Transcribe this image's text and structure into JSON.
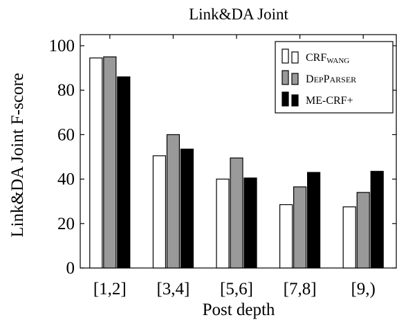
{
  "chart_data": {
    "type": "bar",
    "title": "Link&DA Joint",
    "xlabel": "Post depth",
    "ylabel": "Link&DA Joint F-score",
    "categories": [
      "[1,2]",
      "[3,4]",
      "[5,6]",
      "[7,8]",
      "[9,)"
    ],
    "ylim": [
      0,
      105
    ],
    "yticks": [
      0,
      20,
      40,
      60,
      80,
      100
    ],
    "grid": false,
    "legend_position": "top-right",
    "series": [
      {
        "name": "CRF",
        "name_sub": "WANG",
        "color": "#ffffff",
        "values": [
          94.5,
          50.5,
          40,
          28.5,
          27.5
        ]
      },
      {
        "name": "DepParser",
        "color": "#999999",
        "values": [
          95,
          60,
          49.5,
          36.5,
          34
        ]
      },
      {
        "name": "ME-CRF+",
        "color": "#000000",
        "values": [
          86,
          53.5,
          40.5,
          43,
          43.5
        ]
      }
    ]
  }
}
